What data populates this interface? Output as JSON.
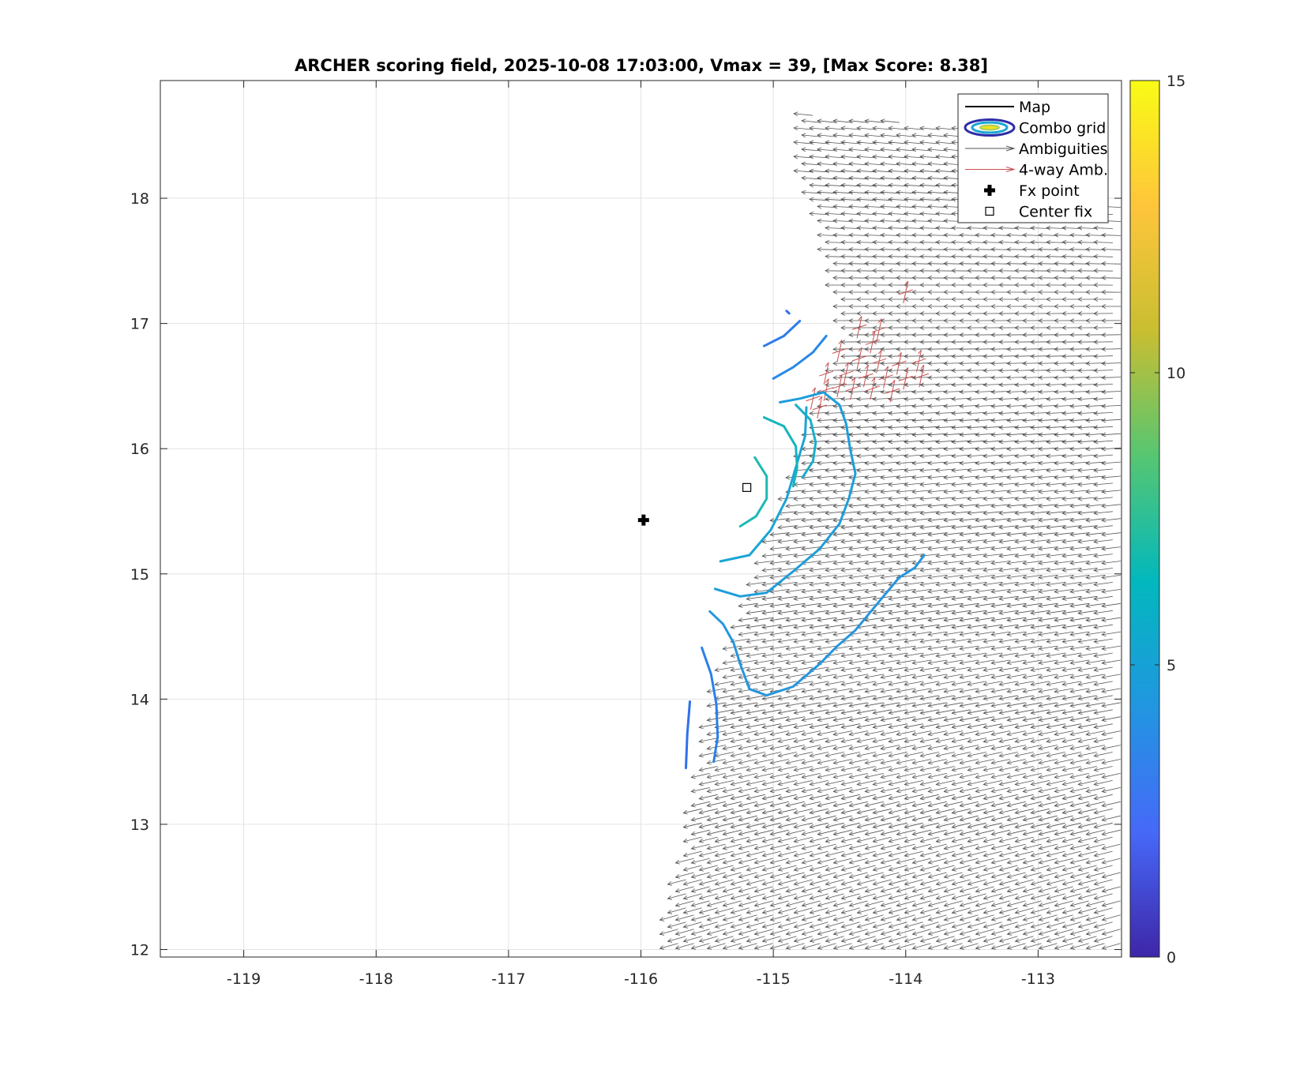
{
  "chart_data": {
    "type": "scatter",
    "title": "ARCHER scoring field, 2025-10-08 17:03:00, Vmax = 39, [Max Score: 8.38]",
    "xlabel": "",
    "ylabel": "",
    "xlim": [
      -119.63,
      -112.37
    ],
    "ylim": [
      11.94,
      18.94
    ],
    "grid": true,
    "xticks": [
      -119,
      -118,
      -117,
      -116,
      -115,
      -114,
      -113
    ],
    "yticks": [
      12,
      13,
      14,
      15,
      16,
      17,
      18
    ],
    "xtick_labels": [
      "-119",
      "-118",
      "-117",
      "-116",
      "-115",
      "-114",
      "-113"
    ],
    "ytick_labels": [
      "12",
      "13",
      "14",
      "15",
      "16",
      "17",
      "18"
    ],
    "colorbar": {
      "range": [
        0,
        15
      ],
      "ticks": [
        0,
        5,
        10,
        15
      ],
      "tick_labels": [
        "0",
        "5",
        "10",
        "15"
      ],
      "colors": [
        "#3e26a8",
        "#4669f8",
        "#2196e1",
        "#02b8bd",
        "#56c672",
        "#c9be31",
        "#fec53b",
        "#f9fb15"
      ]
    },
    "legend": {
      "placement": "top-right",
      "entries": [
        {
          "label": "Map",
          "symbol": "line",
          "color": "#000000"
        },
        {
          "label": "Combo grid",
          "symbol": "contour",
          "color": "#2c2ca8"
        },
        {
          "label": "Ambiguities",
          "symbol": "arrow",
          "color": "#555555"
        },
        {
          "label": "4-way Amb.",
          "symbol": "arrow",
          "color": "#c85050"
        },
        {
          "label": "Fx point",
          "symbol": "plus",
          "color": "#000000"
        },
        {
          "label": "Center fix",
          "symbol": "square",
          "color": "#000000"
        }
      ]
    },
    "fx_point": {
      "x": -115.98,
      "y": 15.43
    },
    "center_fix": {
      "x": -115.2,
      "y": 15.69
    },
    "contours": [
      {
        "level": 4.3,
        "color": "#2f70ec",
        "points": [
          [
            -115.63,
            13.98
          ],
          [
            -115.65,
            13.72
          ],
          [
            -115.66,
            13.45
          ]
        ]
      },
      {
        "level": 4.7,
        "color": "#2a80e8",
        "points": [
          [
            -115.54,
            14.41
          ],
          [
            -115.47,
            14.2
          ],
          [
            -115.43,
            13.96
          ],
          [
            -115.42,
            13.7
          ],
          [
            -115.45,
            13.5
          ]
        ]
      },
      {
        "level": 5.3,
        "color": "#2596de",
        "points": [
          [
            -115.48,
            14.7
          ],
          [
            -115.38,
            14.6
          ],
          [
            -115.3,
            14.45
          ],
          [
            -115.25,
            14.28
          ],
          [
            -115.18,
            14.08
          ],
          [
            -115.05,
            14.03
          ],
          [
            -114.85,
            14.1
          ],
          [
            -114.65,
            14.28
          ],
          [
            -114.52,
            14.42
          ],
          [
            -114.38,
            14.55
          ],
          [
            -114.2,
            14.78
          ],
          [
            -114.05,
            14.97
          ],
          [
            -113.93,
            15.05
          ],
          [
            -113.86,
            15.15
          ]
        ]
      },
      {
        "level": 5.6,
        "color": "#1d9edb",
        "points": [
          [
            -115.44,
            14.88
          ],
          [
            -115.25,
            14.82
          ],
          [
            -115.05,
            14.85
          ],
          [
            -114.85,
            15.02
          ],
          [
            -114.65,
            15.2
          ],
          [
            -114.5,
            15.4
          ],
          [
            -114.43,
            15.6
          ],
          [
            -114.38,
            15.8
          ],
          [
            -114.42,
            16.0
          ],
          [
            -114.45,
            16.2
          ],
          [
            -114.5,
            16.35
          ],
          [
            -114.62,
            16.45
          ],
          [
            -114.8,
            16.4
          ],
          [
            -114.95,
            16.37
          ]
        ]
      },
      {
        "level": 5.9,
        "color": "#1aa5d6",
        "points": [
          [
            -114.75,
            16.33
          ],
          [
            -114.76,
            16.1
          ],
          [
            -114.83,
            15.85
          ],
          [
            -114.9,
            15.6
          ],
          [
            -115.02,
            15.35
          ],
          [
            -115.18,
            15.15
          ],
          [
            -115.4,
            15.1
          ]
        ]
      },
      {
        "level": 6.2,
        "color": "#18aec9",
        "points": [
          [
            -114.83,
            16.35
          ],
          [
            -114.72,
            16.23
          ],
          [
            -114.68,
            16.05
          ],
          [
            -114.7,
            15.9
          ],
          [
            -114.78,
            15.77
          ]
        ]
      },
      {
        "level": 6.6,
        "color": "#16b5bd",
        "points": [
          [
            -115.07,
            16.25
          ],
          [
            -114.92,
            16.18
          ],
          [
            -114.83,
            16.02
          ],
          [
            -114.82,
            15.85
          ],
          [
            -114.85,
            15.7
          ]
        ]
      },
      {
        "level": 6.9,
        "color": "#1fb9b3",
        "points": [
          [
            -115.14,
            15.93
          ],
          [
            -115.05,
            15.78
          ],
          [
            -115.05,
            15.6
          ],
          [
            -115.13,
            15.46
          ],
          [
            -115.25,
            15.38
          ]
        ]
      },
      {
        "level": 5.0,
        "color": "#2a88e6",
        "points": [
          [
            -114.6,
            16.9
          ],
          [
            -114.7,
            16.77
          ],
          [
            -114.85,
            16.65
          ],
          [
            -115.0,
            16.56
          ]
        ]
      },
      {
        "level": 4.6,
        "color": "#2f7ce9",
        "points": [
          [
            -114.8,
            17.02
          ],
          [
            -114.92,
            16.9
          ],
          [
            -115.07,
            16.82
          ]
        ]
      },
      {
        "level": 4.0,
        "color": "#3070ec",
        "points": [
          [
            -114.9,
            17.1
          ],
          [
            -114.88,
            17.08
          ]
        ]
      }
    ],
    "ambiguity_region": {
      "description_free": true,
      "polygon": [
        [
          -114.8,
          18.68
        ],
        [
          -113.2,
          18.53
        ],
        [
          -112.4,
          17.9
        ],
        [
          -112.4,
          12.0
        ],
        [
          -115.85,
          12.0
        ],
        [
          -115.65,
          12.9
        ],
        [
          -115.45,
          14.1
        ],
        [
          -115.1,
          15.1
        ],
        [
          -114.7,
          16.25
        ],
        [
          -114.45,
          16.9
        ],
        [
          -114.6,
          17.6
        ],
        [
          -114.8,
          18.3
        ]
      ],
      "wind_low_lat": [
        -1.2,
        0.35
      ],
      "wind_high_lat": [
        -1.0,
        -0.12
      ]
    },
    "four_way_ambiguities": [
      [
        -114.0,
        17.25
      ],
      [
        -114.35,
        16.97
      ],
      [
        -114.2,
        16.95
      ],
      [
        -114.25,
        16.85
      ],
      [
        -114.5,
        16.78
      ],
      [
        -114.35,
        16.72
      ],
      [
        -114.2,
        16.7
      ],
      [
        -114.05,
        16.68
      ],
      [
        -113.9,
        16.7
      ],
      [
        -114.6,
        16.6
      ],
      [
        -114.45,
        16.6
      ],
      [
        -114.3,
        16.58
      ],
      [
        -114.15,
        16.57
      ],
      [
        -114.0,
        16.56
      ],
      [
        -113.88,
        16.58
      ],
      [
        -114.6,
        16.47
      ],
      [
        -114.5,
        16.5
      ],
      [
        -114.4,
        16.48
      ],
      [
        -114.25,
        16.48
      ],
      [
        -114.1,
        16.46
      ],
      [
        -114.7,
        16.4
      ],
      [
        -114.65,
        16.33
      ]
    ]
  }
}
